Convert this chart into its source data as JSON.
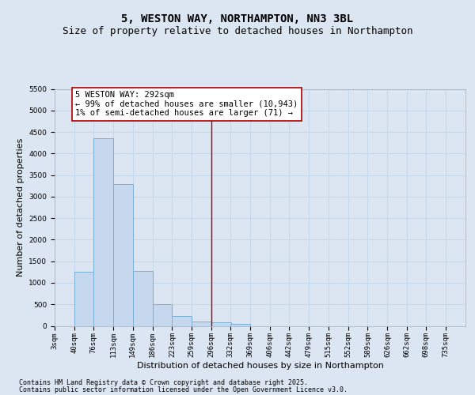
{
  "title1": "5, WESTON WAY, NORTHAMPTON, NN3 3BL",
  "title2": "Size of property relative to detached houses in Northampton",
  "xlabel": "Distribution of detached houses by size in Northampton",
  "ylabel": "Number of detached properties",
  "bins": [
    3,
    40,
    76,
    113,
    149,
    186,
    223,
    259,
    296,
    332,
    369,
    406,
    442,
    479,
    515,
    552,
    589,
    626,
    662,
    698,
    735
  ],
  "counts": [
    0,
    1250,
    4350,
    3300,
    1275,
    500,
    225,
    100,
    75,
    50,
    0,
    0,
    0,
    0,
    0,
    0,
    0,
    0,
    0,
    0,
    0
  ],
  "bar_color": "#c5d8ee",
  "bar_edge_color": "#7aafd4",
  "vline_x": 296,
  "vline_color": "#aa0000",
  "annotation_text": "5 WESTON WAY: 292sqm\n← 99% of detached houses are smaller (10,943)\n1% of semi-detached houses are larger (71) →",
  "annotation_box_facecolor": "#ffffff",
  "annotation_box_edgecolor": "#aa0000",
  "ylim_max": 5500,
  "yticks": [
    0,
    500,
    1000,
    1500,
    2000,
    2500,
    3000,
    3500,
    4000,
    4500,
    5000,
    5500
  ],
  "bg_color": "#dce6f3",
  "grid_color": "#c8d8eb",
  "title1_fontsize": 10,
  "title2_fontsize": 9,
  "xlabel_fontsize": 8,
  "ylabel_fontsize": 8,
  "tick_fontsize": 6.5,
  "annot_fontsize": 7.5,
  "footer_fontsize": 6,
  "footer1": "Contains HM Land Registry data © Crown copyright and database right 2025.",
  "footer2": "Contains public sector information licensed under the Open Government Licence v3.0."
}
